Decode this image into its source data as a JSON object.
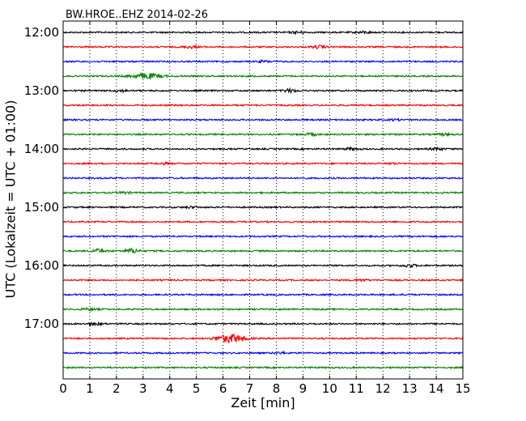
{
  "chart_data": {
    "type": "line",
    "title": "BW.HROE..EHZ 2014-02-26",
    "xlabel": "Zeit  [min]",
    "ylabel": "UTC (Lokalzeit = UTC + 01:00)",
    "xlim": [
      0,
      15
    ],
    "x_ticks": [
      "0",
      "1",
      "2",
      "3",
      "4",
      "5",
      "6",
      "7",
      "8",
      "9",
      "10",
      "11",
      "12",
      "13",
      "14",
      "15"
    ],
    "y_tick_labels": [
      "12:00",
      "13:00",
      "14:00",
      "15:00",
      "16:00",
      "17:00"
    ],
    "grid": "vertical dotted",
    "colors": [
      "#000000",
      "#ff0000",
      "#0000ff",
      "#008000"
    ],
    "trace_interval_minutes": 15,
    "traces": [
      {
        "start": "12:00",
        "color": "#000000",
        "bursts": [
          {
            "x": 8.8,
            "amp": 1.2
          },
          {
            "x": 11.3,
            "amp": 1.0
          }
        ]
      },
      {
        "start": "12:15",
        "color": "#ff0000",
        "bursts": [
          {
            "x": 4.8,
            "amp": 1.4
          },
          {
            "x": 9.6,
            "amp": 1.6
          }
        ]
      },
      {
        "start": "12:30",
        "color": "#0000ff",
        "bursts": [
          {
            "x": 7.5,
            "amp": 0.9
          }
        ]
      },
      {
        "start": "12:45",
        "color": "#008000",
        "bursts": [
          {
            "x": 3.1,
            "amp": 3.2
          }
        ]
      },
      {
        "start": "13:00",
        "color": "#000000",
        "bursts": [
          {
            "x": 8.5,
            "amp": 1.8
          },
          {
            "x": 2.2,
            "amp": 1.0
          }
        ]
      },
      {
        "start": "13:15",
        "color": "#ff0000",
        "bursts": []
      },
      {
        "start": "13:30",
        "color": "#0000ff",
        "bursts": [
          {
            "x": 12.5,
            "amp": 0.8
          }
        ]
      },
      {
        "start": "13:45",
        "color": "#008000",
        "bursts": [
          {
            "x": 9.3,
            "amp": 1.2
          },
          {
            "x": 14.3,
            "amp": 1.0
          }
        ]
      },
      {
        "start": "14:00",
        "color": "#000000",
        "bursts": [
          {
            "x": 10.8,
            "amp": 1.3
          },
          {
            "x": 14.0,
            "amp": 1.4
          }
        ]
      },
      {
        "start": "14:15",
        "color": "#ff0000",
        "bursts": [
          {
            "x": 3.8,
            "amp": 0.9
          },
          {
            "x": 12.3,
            "amp": 0.9
          }
        ]
      },
      {
        "start": "14:30",
        "color": "#0000ff",
        "bursts": []
      },
      {
        "start": "14:45",
        "color": "#008000",
        "bursts": [
          {
            "x": 2.3,
            "amp": 1.0
          }
        ]
      },
      {
        "start": "15:00",
        "color": "#000000",
        "bursts": [
          {
            "x": 4.8,
            "amp": 0.8
          }
        ]
      },
      {
        "start": "15:15",
        "color": "#ff0000",
        "bursts": []
      },
      {
        "start": "15:30",
        "color": "#0000ff",
        "bursts": []
      },
      {
        "start": "15:45",
        "color": "#008000",
        "bursts": [
          {
            "x": 1.3,
            "amp": 2.0
          },
          {
            "x": 2.6,
            "amp": 2.6
          }
        ]
      },
      {
        "start": "16:00",
        "color": "#000000",
        "bursts": [
          {
            "x": 13.0,
            "amp": 1.6
          }
        ]
      },
      {
        "start": "16:15",
        "color": "#ff0000",
        "bursts": [
          {
            "x": 11.2,
            "amp": 1.0
          }
        ]
      },
      {
        "start": "16:30",
        "color": "#0000ff",
        "bursts": []
      },
      {
        "start": "16:45",
        "color": "#008000",
        "bursts": [
          {
            "x": 1.0,
            "amp": 1.2
          }
        ]
      },
      {
        "start": "17:00",
        "color": "#000000",
        "bursts": [
          {
            "x": 1.2,
            "amp": 1.8
          }
        ]
      },
      {
        "start": "17:15",
        "color": "#ff0000",
        "bursts": [
          {
            "x": 6.3,
            "amp": 5.0
          }
        ]
      },
      {
        "start": "17:30",
        "color": "#0000ff",
        "bursts": [
          {
            "x": 8.2,
            "amp": 1.0
          }
        ]
      },
      {
        "start": "17:45",
        "color": "#008000",
        "bursts": []
      }
    ]
  }
}
